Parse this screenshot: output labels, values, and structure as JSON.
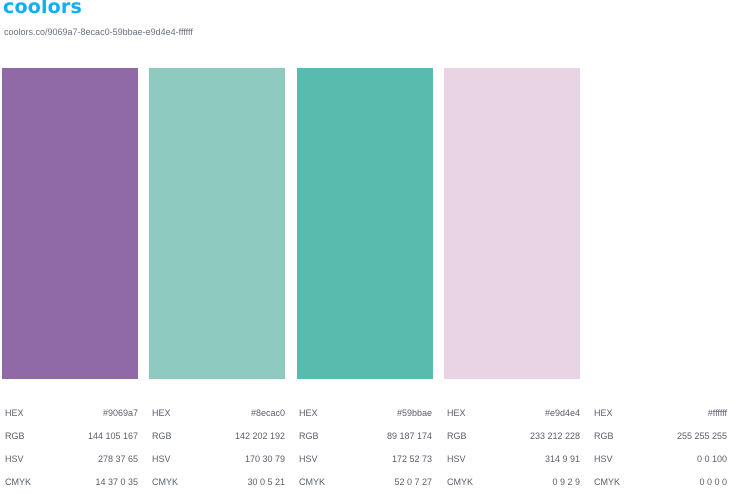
{
  "header": {
    "logo_text": "coolors",
    "palette_url": "coolors.co/9069a7-8ecac0-59bbae-e9d4e4-ffffff"
  },
  "labels": {
    "hex": "HEX",
    "rgb": "RGB",
    "hsv": "HSV",
    "cmyk": "CMYK"
  },
  "palette": [
    {
      "color": "#9069a7",
      "hex": "#9069a7",
      "rgb": "144 105 167",
      "hsv": "278 37 65",
      "cmyk": "14 37 0 35"
    },
    {
      "color": "#8ecac0",
      "hex": "#8ecac0",
      "rgb": "142 202 192",
      "hsv": "170 30 79",
      "cmyk": "30 0 5 21"
    },
    {
      "color": "#59bbae",
      "hex": "#59bbae",
      "rgb": "89 187 174",
      "hsv": "172 52 73",
      "cmyk": "52 0 7 27"
    },
    {
      "color": "#e9d4e4",
      "hex": "#e9d4e4",
      "rgb": "233 212 228",
      "hsv": "314 9 91",
      "cmyk": "0 9 2 9"
    },
    {
      "color": "#ffffff",
      "hex": "#ffffff",
      "rgb": "255 255 255",
      "hsv": "0 0 100",
      "cmyk": "0 0 0 0"
    }
  ]
}
